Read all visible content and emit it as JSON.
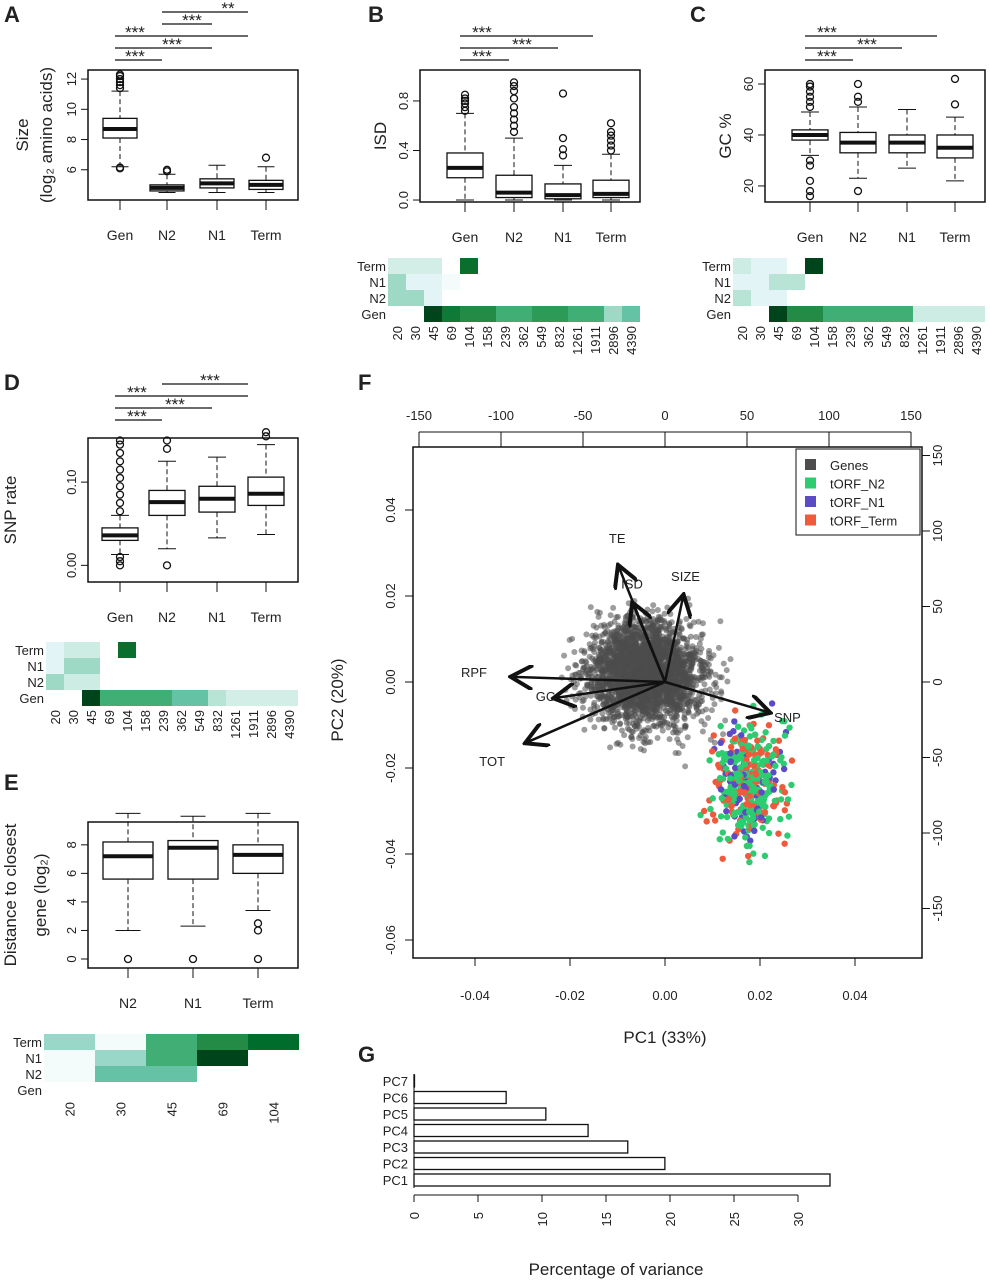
{
  "panel_labels": [
    "A",
    "B",
    "C",
    "D",
    "E",
    "F",
    "G"
  ],
  "chart_data": [
    {
      "id": "A",
      "type": "box",
      "ylabel": [
        "Size",
        "(log₂ amino acids)"
      ],
      "categories": [
        "Gen",
        "N2",
        "N1",
        "Term"
      ],
      "ylim": [
        4.0,
        12.6
      ],
      "yticks": [
        6,
        8,
        10,
        12
      ],
      "boxes": [
        {
          "low": 6.2,
          "q1": 8.1,
          "median": 8.7,
          "q3": 9.4,
          "high": 11.2,
          "outliers": [
            6.1,
            6.15,
            11.4,
            11.6,
            11.8,
            12.0,
            12.2,
            12.3
          ]
        },
        {
          "low": 4.5,
          "q1": 4.6,
          "median": 4.8,
          "q3": 5.0,
          "high": 5.7,
          "outliers": [
            5.9,
            6.0
          ]
        },
        {
          "low": 4.5,
          "q1": 4.8,
          "median": 5.1,
          "q3": 5.4,
          "high": 6.3,
          "outliers": []
        },
        {
          "low": 4.5,
          "q1": 4.7,
          "median": 5.0,
          "q3": 5.3,
          "high": 6.2,
          "outliers": [
            6.8
          ]
        }
      ],
      "significance": [
        {
          "from": "Gen",
          "to": "N2",
          "label": "***"
        },
        {
          "from": "Gen",
          "to": "N1",
          "label": "***"
        },
        {
          "from": "Gen",
          "to": "Term",
          "label": "***"
        },
        {
          "from": "N2",
          "to": "N1",
          "label": "***"
        },
        {
          "from": "N2",
          "to": "Term",
          "label": "**"
        }
      ]
    },
    {
      "id": "B",
      "type": "box",
      "ylabel": [
        "ISD"
      ],
      "categories": [
        "Gen",
        "N2",
        "N1",
        "Term"
      ],
      "ylim": [
        -0.016,
        1.05
      ],
      "yticks": [
        0.0,
        0.4,
        0.8
      ],
      "ytick_labels": [
        "0.0",
        "0.4",
        "0.8"
      ],
      "boxes": [
        {
          "low": 0.0,
          "q1": 0.18,
          "median": 0.26,
          "q3": 0.38,
          "high": 0.7,
          "outliers": [
            0.72,
            0.75,
            0.78,
            0.8,
            0.82,
            0.85
          ]
        },
        {
          "low": 0.0,
          "q1": 0.02,
          "median": 0.06,
          "q3": 0.2,
          "high": 0.5,
          "outliers": [
            0.55,
            0.6,
            0.65,
            0.7,
            0.75,
            0.82,
            0.88,
            0.92,
            0.95
          ]
        },
        {
          "low": 0.0,
          "q1": 0.01,
          "median": 0.04,
          "q3": 0.13,
          "high": 0.28,
          "outliers": [
            0.36,
            0.41,
            0.5,
            0.86
          ]
        },
        {
          "low": 0.0,
          "q1": 0.02,
          "median": 0.05,
          "q3": 0.16,
          "high": 0.37,
          "outliers": [
            0.4,
            0.44,
            0.48,
            0.52,
            0.55,
            0.62
          ]
        }
      ],
      "significance": [
        {
          "from": "Gen",
          "to": "N2",
          "label": "***"
        },
        {
          "from": "Gen",
          "to": "N1",
          "label": "***"
        },
        {
          "from": "Gen",
          "to": "Term",
          "label": "***"
        }
      ]
    },
    {
      "id": "C",
      "type": "box",
      "ylabel": [
        "GC %"
      ],
      "categories": [
        "Gen",
        "N2",
        "N1",
        "Term"
      ],
      "ylim": [
        13.7,
        65.5
      ],
      "yticks": [
        20,
        40,
        60
      ],
      "boxes": [
        {
          "low": 32,
          "q1": 38,
          "median": 40,
          "q3": 42,
          "high": 49,
          "outliers": [
            16,
            18,
            22,
            28,
            30,
            51,
            53,
            55,
            57,
            59,
            60
          ]
        },
        {
          "low": 23,
          "q1": 33,
          "median": 37,
          "q3": 41,
          "high": 51,
          "outliers": [
            18,
            53,
            55,
            60
          ]
        },
        {
          "low": 27,
          "q1": 33,
          "median": 37,
          "q3": 40,
          "high": 50,
          "outliers": []
        },
        {
          "low": 22,
          "q1": 31,
          "median": 35,
          "q3": 40,
          "high": 47,
          "outliers": [
            52,
            62
          ]
        }
      ],
      "significance": [
        {
          "from": "Gen",
          "to": "N2",
          "label": "***"
        },
        {
          "from": "Gen",
          "to": "N1",
          "label": "***"
        },
        {
          "from": "Gen",
          "to": "Term",
          "label": "***"
        }
      ]
    },
    {
      "id": "D",
      "type": "box",
      "ylabel": [
        "SNP rate"
      ],
      "categories": [
        "Gen",
        "N2",
        "N1",
        "Term"
      ],
      "ylim": [
        -0.02,
        0.153
      ],
      "yticks": [
        0.0,
        0.1
      ],
      "ytick_labels": [
        "0.00",
        "0.10"
      ],
      "boxes": [
        {
          "low": 0.013,
          "q1": 0.03,
          "median": 0.036,
          "q3": 0.045,
          "high": 0.06,
          "outliers": [
            0.0,
            0.005,
            0.01,
            0.065,
            0.075,
            0.085,
            0.095,
            0.105,
            0.115,
            0.125,
            0.135,
            0.145,
            0.15
          ]
        },
        {
          "low": 0.02,
          "q1": 0.06,
          "median": 0.076,
          "q3": 0.09,
          "high": 0.125,
          "outliers": [
            0.0,
            0.14,
            0.15
          ]
        },
        {
          "low": 0.033,
          "q1": 0.064,
          "median": 0.08,
          "q3": 0.095,
          "high": 0.13,
          "outliers": []
        },
        {
          "low": 0.037,
          "q1": 0.072,
          "median": 0.086,
          "q3": 0.106,
          "high": 0.145,
          "outliers": [
            0.155,
            0.16
          ]
        }
      ],
      "significance": [
        {
          "from": "Gen",
          "to": "N2",
          "label": "***"
        },
        {
          "from": "Gen",
          "to": "N1",
          "label": "***"
        },
        {
          "from": "Gen",
          "to": "Term",
          "label": "***"
        },
        {
          "from": "N2",
          "to": "Term",
          "label": "***"
        }
      ]
    },
    {
      "id": "E",
      "type": "box",
      "ylabel": [
        "Distance to closest",
        "gene (log₂)"
      ],
      "categories": [
        "N2",
        "N1",
        "Term"
      ],
      "ylim": [
        -0.63,
        9.6
      ],
      "yticks": [
        0,
        2,
        4,
        6,
        8
      ],
      "boxes": [
        {
          "low": 2.0,
          "q1": 5.6,
          "median": 7.2,
          "q3": 8.2,
          "high": 10.2,
          "outliers": [
            0
          ]
        },
        {
          "low": 2.3,
          "q1": 5.6,
          "median": 7.8,
          "q3": 8.3,
          "high": 10.0,
          "outliers": [
            0
          ]
        },
        {
          "low": 3.4,
          "q1": 6.0,
          "median": 7.3,
          "q3": 8.0,
          "high": 10.2,
          "outliers": [
            0,
            2.0,
            2.5
          ]
        }
      ],
      "significance": []
    },
    {
      "id": "B-heat",
      "type": "heatmap",
      "rows": [
        "Term",
        "N1",
        "N2",
        "Gen"
      ],
      "columns": [
        "20",
        "30",
        "45",
        "69",
        "104",
        "158",
        "239",
        "362",
        "549",
        "832",
        "1261",
        "1911",
        "2896",
        "4390"
      ],
      "colors": [
        [
          "#d3eee6",
          "#d3eee6",
          "#d3eee6",
          null,
          "#0a6e2c",
          null,
          null,
          null,
          null,
          null,
          null,
          null,
          null,
          null
        ],
        [
          "#9dd9c4",
          "#e3f4f6",
          "#e3f4f6",
          "#f4fbfb",
          null,
          null,
          null,
          null,
          null,
          null,
          null,
          null,
          null,
          null
        ],
        [
          "#9dd9c4",
          "#9dd9c4",
          "#e3f4f6",
          null,
          null,
          null,
          null,
          null,
          null,
          null,
          null,
          null,
          null,
          null
        ],
        [
          null,
          null,
          "#00441b",
          "#0f7a37",
          "#238b45",
          "#238b45",
          "#41ae76",
          "#41ae76",
          "#2e9a57",
          "#2e9a57",
          "#41ae76",
          "#41ae76",
          "#9dd9c4",
          "#66c2a4"
        ]
      ]
    },
    {
      "id": "C-heat",
      "type": "heatmap",
      "rows": [
        "Term",
        "N1",
        "N2",
        "Gen"
      ],
      "columns": [
        "20",
        "30",
        "45",
        "69",
        "104",
        "158",
        "239",
        "362",
        "549",
        "832",
        "1261",
        "1911",
        "2896",
        "4390"
      ],
      "colors": [
        [
          "#cdece3",
          "#e3f4f6",
          "#e3f4f6",
          null,
          "#00441b",
          null,
          null,
          null,
          null,
          null,
          null,
          null,
          null,
          null
        ],
        [
          "#e3f4f6",
          "#e3f4f6",
          "#b8e4d6",
          "#b8e4d6",
          null,
          null,
          null,
          null,
          null,
          null,
          null,
          null,
          null,
          null
        ],
        [
          "#b8e4d6",
          "#e3f4f6",
          "#e3f4f6",
          null,
          null,
          null,
          null,
          null,
          null,
          null,
          null,
          null,
          null,
          null
        ],
        [
          null,
          null,
          "#00441b",
          "#238b45",
          "#238b45",
          "#41ae76",
          "#41ae76",
          "#41ae76",
          "#41ae76",
          "#41ae76",
          "#cdece3",
          "#cdece3",
          "#cdece3",
          "#cdece3"
        ]
      ]
    },
    {
      "id": "D-heat",
      "type": "heatmap",
      "rows": [
        "Term",
        "N1",
        "N2",
        "Gen"
      ],
      "columns": [
        "20",
        "30",
        "45",
        "69",
        "104",
        "158",
        "239",
        "362",
        "549",
        "832",
        "1261",
        "1911",
        "2896",
        "4390"
      ],
      "colors": [
        [
          "#e3f4f6",
          "#cdece3",
          "#cdece3",
          null,
          "#0a6e2c",
          null,
          null,
          null,
          null,
          null,
          null,
          null,
          null,
          null
        ],
        [
          "#e3f4f6",
          "#9dd9c4",
          "#9dd9c4",
          null,
          null,
          null,
          null,
          null,
          null,
          null,
          null,
          null,
          null,
          null
        ],
        [
          "#9dd9c4",
          "#cdece3",
          "#cdece3",
          null,
          null,
          null,
          null,
          null,
          null,
          null,
          null,
          null,
          null,
          null
        ],
        [
          null,
          null,
          "#00441b",
          "#41ae76",
          "#41ae76",
          "#41ae76",
          "#41ae76",
          "#66c2a4",
          "#66c2a4",
          "#b8e4d6",
          "#d3eee6",
          "#d3eee6",
          "#d3eee6",
          "#d3eee6"
        ]
      ]
    },
    {
      "id": "E-heat",
      "type": "heatmap",
      "rows": [
        "Term",
        "N1",
        "N2",
        "Gen"
      ],
      "columns": [
        "20",
        "30",
        "45",
        "69",
        "104"
      ],
      "colors": [
        [
          "#99d8c9",
          "#f4fbfb",
          "#41ae76",
          "#238b45",
          "#006d2c"
        ],
        [
          "#f4fbfb",
          "#99d8c9",
          "#41ae76",
          "#00441b",
          null
        ],
        [
          "#f4fbfb",
          "#66c2a4",
          "#66c2a4",
          null,
          null
        ],
        [
          null,
          null,
          null,
          null,
          null
        ]
      ]
    },
    {
      "id": "F",
      "type": "scatter",
      "xlabel": "PC1 (33%)",
      "ylabel": "PC2 (20%)",
      "xlim": [
        -0.053,
        0.054
      ],
      "ylim": [
        -0.064,
        0.055
      ],
      "xticks": [
        -0.04,
        -0.02,
        0.0,
        0.02,
        0.04
      ],
      "xtick_labels": [
        "-0.04",
        "-0.02",
        "0.00",
        "0.02",
        "0.04"
      ],
      "yticks": [
        -0.06,
        -0.04,
        -0.02,
        0.0,
        0.02,
        0.04
      ],
      "ytick_labels": [
        "-0.06",
        "-0.04",
        "-0.02",
        "0.00",
        "0.02",
        "0.04"
      ],
      "top_ticks": [
        -150,
        -100,
        -50,
        0,
        50,
        100,
        150
      ],
      "right_ticks": [
        150,
        100,
        50,
        0,
        -50,
        -100,
        -150
      ],
      "legend": [
        {
          "name": "Genes",
          "color": "#4d4d4d"
        },
        {
          "name": "tORF_N2",
          "color": "#2ecc71"
        },
        {
          "name": "tORF_N1",
          "color": "#5b4bc4"
        },
        {
          "name": "tORF_Term",
          "color": "#f05a3c"
        }
      ],
      "legend_position": "top-right",
      "loadings": [
        {
          "name": "TE",
          "x": -0.0097,
          "y": 0.0267
        },
        {
          "name": "ISD",
          "x": -0.0067,
          "y": 0.018
        },
        {
          "name": "SIZE",
          "x": 0.0038,
          "y": 0.0198
        },
        {
          "name": "RPF",
          "x": -0.032,
          "y": 0.0012
        },
        {
          "name": "GC",
          "x": -0.023,
          "y": -0.0037
        },
        {
          "name": "TOT",
          "x": -0.029,
          "y": -0.014
        },
        {
          "name": "SNP",
          "x": 0.0217,
          "y": -0.007
        }
      ]
    },
    {
      "id": "G",
      "type": "bar",
      "orientation": "horizontal",
      "xlabel": "Percentage of variance",
      "categories": [
        "PC1",
        "PC2",
        "PC3",
        "PC4",
        "PC5",
        "PC6",
        "PC7"
      ],
      "values": [
        32.5,
        19.6,
        16.7,
        13.6,
        10.3,
        7.2,
        0.0
      ],
      "xlim": [
        0,
        33
      ],
      "xticks": [
        0,
        5,
        10,
        15,
        20,
        25,
        30
      ]
    }
  ]
}
